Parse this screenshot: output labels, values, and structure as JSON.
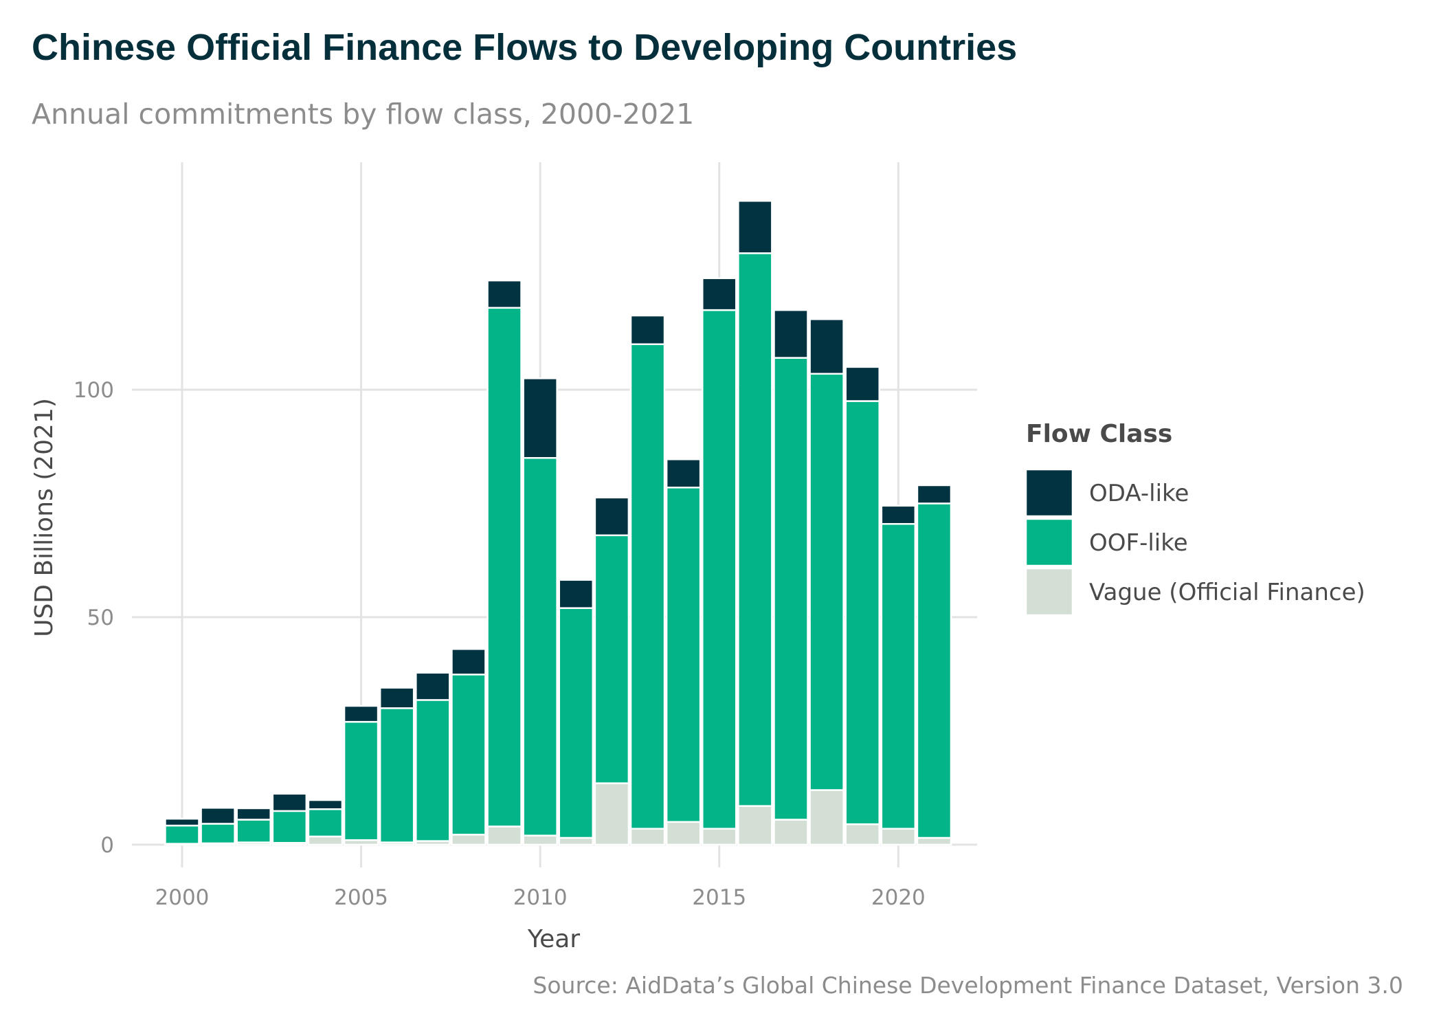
{
  "chart_data": {
    "type": "bar",
    "stacked": true,
    "title": "Chinese Official Finance Flows to Developing Countries",
    "subtitle": "Annual commitments by flow class, 2000-2021",
    "caption": "Source: AidData’s Global Chinese Development Finance Dataset, Version 3.0",
    "xlabel": "Year",
    "ylabel": "USD Billions (2021)",
    "legend_title": "Flow Class",
    "legend_position": "right",
    "grid": true,
    "xlim": [
      1998.6,
      2022.2
    ],
    "ylim": [
      -5,
      150
    ],
    "x_ticks": [
      "2000",
      "2005",
      "2010",
      "2015",
      "2020"
    ],
    "y_ticks": [
      "0",
      "50",
      "100"
    ],
    "x": [
      2000,
      2001,
      2002,
      2003,
      2004,
      2005,
      2006,
      2007,
      2008,
      2009,
      2010,
      2011,
      2012,
      2013,
      2014,
      2015,
      2016,
      2017,
      2018,
      2019,
      2020,
      2021
    ],
    "series": [
      {
        "name": "Vague (Official Finance)",
        "color": "#d3dfd5",
        "values": [
          0.2,
          0.3,
          0.5,
          0.4,
          1.8,
          1.0,
          0.5,
          0.8,
          2.2,
          4.0,
          2.0,
          1.5,
          13.5,
          3.5,
          5.0,
          3.5,
          8.5,
          5.5,
          12.0,
          4.5,
          3.5,
          1.5
        ]
      },
      {
        "name": "OOF-like",
        "color": "#02b488",
        "values": [
          4.0,
          4.3,
          5.0,
          7.0,
          6.0,
          26.0,
          29.5,
          31.0,
          35.2,
          114.0,
          83.0,
          50.5,
          54.5,
          106.5,
          73.5,
          114.0,
          121.5,
          101.5,
          91.5,
          93.0,
          67.0,
          73.5
        ]
      },
      {
        "name": "ODA-like",
        "color": "#023340",
        "values": [
          1.5,
          3.5,
          2.5,
          3.8,
          2.0,
          3.5,
          4.5,
          6.0,
          5.6,
          6.0,
          17.5,
          6.2,
          8.3,
          6.3,
          6.2,
          7.0,
          11.5,
          10.5,
          12.0,
          7.5,
          4.0,
          4.0
        ]
      }
    ],
    "legend_order": [
      "ODA-like",
      "OOF-like",
      "Vague (Official Finance)"
    ]
  }
}
